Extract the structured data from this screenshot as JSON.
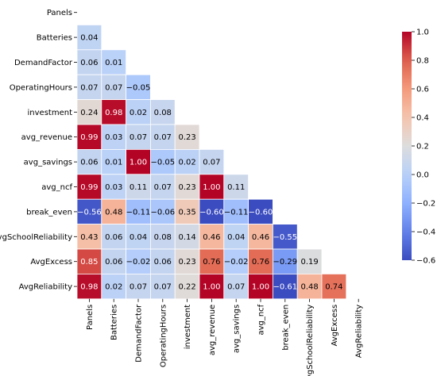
{
  "chart_data": {
    "type": "heatmap",
    "variant": "lower-triangle-correlation",
    "colormap": "coolwarm",
    "vmin": -0.6,
    "vmax": 1.0,
    "labels": [
      "Panels",
      "Batteries",
      "DemandFactor",
      "OperatingHours",
      "investment",
      "avg_revenue",
      "avg_savings",
      "avg_ncf",
      "break_even",
      "AvgSchoolReliability",
      "AvgExcess",
      "AvgReliability"
    ],
    "matrix": [
      [],
      [
        0.04
      ],
      [
        0.06,
        0.01
      ],
      [
        0.07,
        0.07,
        -0.05
      ],
      [
        0.24,
        0.98,
        0.02,
        0.08
      ],
      [
        0.99,
        0.03,
        0.07,
        0.07,
        0.23
      ],
      [
        0.06,
        0.01,
        1.0,
        -0.05,
        0.02,
        0.07
      ],
      [
        0.99,
        0.03,
        0.11,
        0.07,
        0.23,
        1.0,
        0.11
      ],
      [
        -0.56,
        0.48,
        -0.11,
        -0.06,
        0.35,
        -0.6,
        -0.11,
        -0.6
      ],
      [
        0.43,
        0.06,
        0.04,
        0.08,
        0.14,
        0.46,
        0.04,
        0.46,
        -0.55
      ],
      [
        0.85,
        0.06,
        -0.02,
        0.06,
        0.23,
        0.76,
        -0.02,
        0.76,
        -0.29,
        0.19
      ],
      [
        0.98,
        0.02,
        0.07,
        0.07,
        0.22,
        1.0,
        0.07,
        1.0,
        -0.61,
        0.48,
        0.74
      ]
    ],
    "value_labels": [
      [],
      [
        "0.04"
      ],
      [
        "0.06",
        "0.01"
      ],
      [
        "0.07",
        "0.07",
        "−0.05"
      ],
      [
        "0.24",
        "0.98",
        "0.02",
        "0.08"
      ],
      [
        "0.99",
        "0.03",
        "0.07",
        "0.07",
        "0.23"
      ],
      [
        "0.06",
        "0.01",
        "1.00",
        "−0.05",
        "0.02",
        "0.07"
      ],
      [
        "0.99",
        "0.03",
        "0.11",
        "0.07",
        "0.23",
        "1.00",
        "0.11"
      ],
      [
        "−0.56",
        "0.48",
        "−0.11",
        "−0.06",
        "0.35",
        "−0.60",
        "−0.11",
        "−0.60"
      ],
      [
        "0.43",
        "0.06",
        "0.04",
        "0.08",
        "0.14",
        "0.46",
        "0.04",
        "0.46",
        "−0.55"
      ],
      [
        "0.85",
        "0.06",
        "−0.02",
        "0.06",
        "0.23",
        "0.76",
        "−0.02",
        "0.76",
        "−0.29",
        "0.19"
      ],
      [
        "0.98",
        "0.02",
        "0.07",
        "0.07",
        "0.22",
        "1.00",
        "0.07",
        "1.00",
        "−0.61",
        "0.48",
        "0.74"
      ]
    ],
    "colorbar": {
      "ticks": [
        1.0,
        0.8,
        0.6,
        0.4,
        0.2,
        0.0,
        -0.2,
        -0.4,
        -0.6
      ],
      "tick_labels": [
        "1.0",
        "0.8",
        "0.6",
        "0.4",
        "0.2",
        "0.0",
        "−0.2",
        "−0.4",
        "−0.6"
      ],
      "range": [
        -0.6,
        1.0
      ],
      "placement": "right"
    }
  }
}
